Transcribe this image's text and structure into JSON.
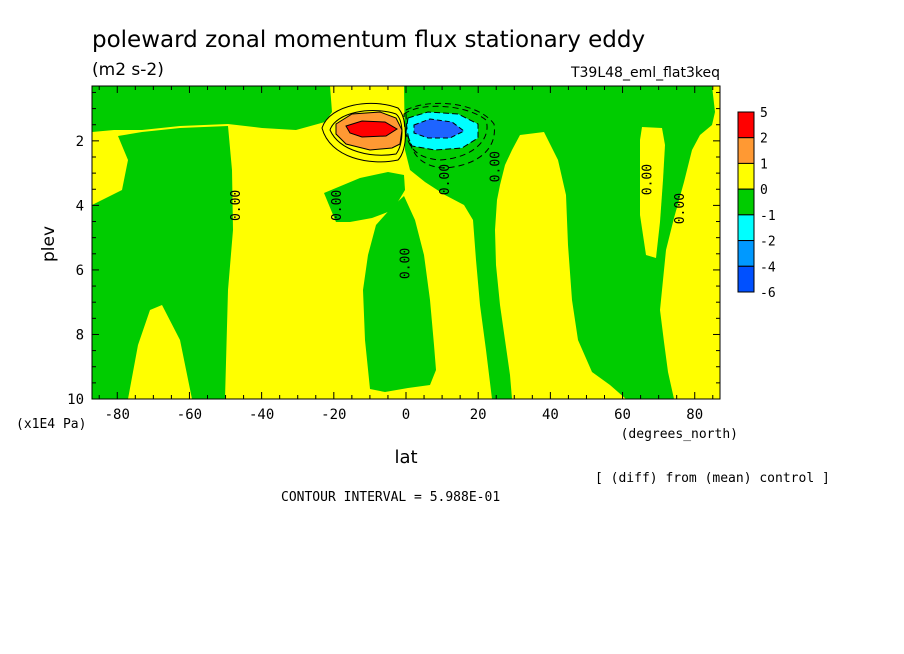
{
  "chart_data": {
    "type": "contour",
    "title": "poleward zonal momentum flux stationary eddy",
    "subtitle": "(m2 s-2)",
    "run_label": "T39L48_eml_flat3keq",
    "xlabel": "lat",
    "xunit": "(degrees_north)",
    "ylabel": "plev",
    "yunit": "(x1E4 Pa)",
    "xlim": [
      -87,
      87
    ],
    "ylim": [
      10,
      0.3
    ],
    "x_ticks": [
      -80,
      -60,
      -40,
      -20,
      0,
      20,
      40,
      60,
      80
    ],
    "y_ticks": [
      2,
      4,
      6,
      8,
      10
    ],
    "contour_labels": [
      {
        "text": "0.00",
        "lat": -47,
        "plev": 4.0
      },
      {
        "text": "0.00",
        "lat": -19,
        "plev": 4.0
      },
      {
        "text": "0.00",
        "lat": 0,
        "plev": 5.8
      },
      {
        "text": "0.00",
        "lat": 11,
        "plev": 3.2
      },
      {
        "text": "0.00",
        "lat": 25,
        "plev": 2.8
      },
      {
        "text": "0.00",
        "lat": 67,
        "plev": 3.2
      },
      {
        "text": "0.00",
        "lat": 76,
        "plev": 4.1
      }
    ],
    "colorbar": {
      "labels": [
        "5",
        "2",
        "1",
        "0",
        "-1",
        "-2",
        "-4",
        "-6"
      ],
      "colors": [
        "#ff0000",
        "#ff9933",
        "#ffff00",
        "#00cc00",
        "#00ffff",
        "#0099ff",
        "#0050ff"
      ]
    },
    "colors": {
      "positive": "#ffff00",
      "negative": "#00cc00",
      "max": "#ff0000",
      "min": "#1e64ff"
    },
    "contour_interval": "CONTOUR INTERVAL = 5.988E-01",
    "note": "[ (diff) from (mean) control ]"
  }
}
